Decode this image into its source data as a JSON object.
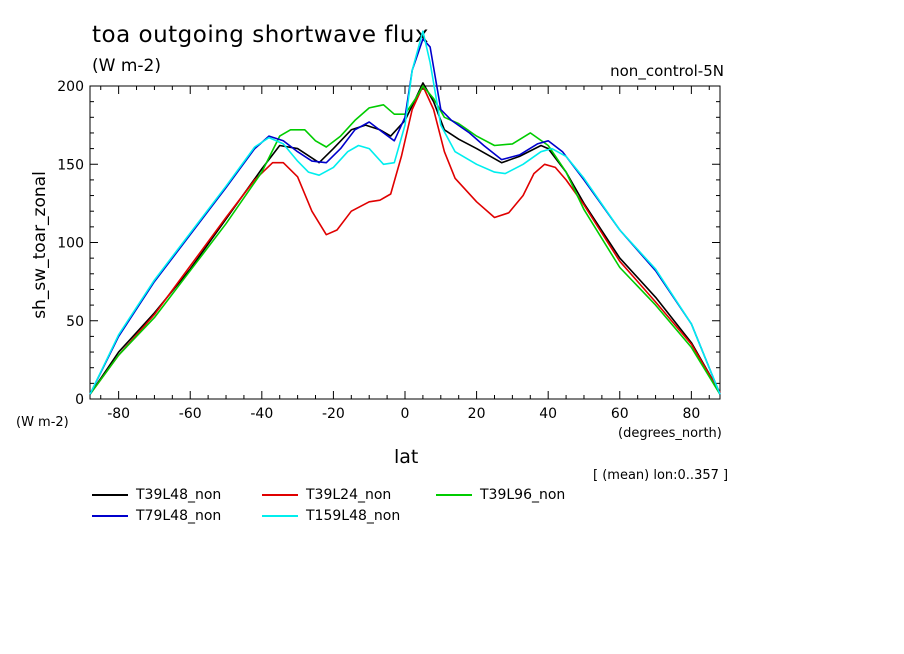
{
  "chart_data": {
    "type": "line",
    "title": "toa outgoing shortwave flux",
    "units": "(W m-2)",
    "run_label": "non_control-5N",
    "subtitle": "[ (mean) lon:0..357 ]",
    "xlabel": "lat",
    "xunits": "(degrees_north)",
    "ylabel": "sh_sw_toar_zonal",
    "yunits": "(W m-2)",
    "xlim": [
      -88,
      88
    ],
    "ylim": [
      0,
      200
    ],
    "xticks": [
      -80,
      -60,
      -40,
      -20,
      0,
      20,
      40,
      60,
      80
    ],
    "yticks": [
      0,
      50,
      100,
      150,
      200
    ],
    "grid": false,
    "legend_position": "bottom",
    "series": [
      {
        "name": "T39L48_non",
        "color": "#000000",
        "points": [
          [
            -88,
            3
          ],
          [
            -80,
            30
          ],
          [
            -70,
            55
          ],
          [
            -60,
            83
          ],
          [
            -50,
            115
          ],
          [
            -40,
            147
          ],
          [
            -35,
            162
          ],
          [
            -30,
            160
          ],
          [
            -24,
            151
          ],
          [
            -20,
            160
          ],
          [
            -15,
            172
          ],
          [
            -11,
            175
          ],
          [
            -7,
            172
          ],
          [
            -4,
            168
          ],
          [
            0,
            178
          ],
          [
            3,
            192
          ],
          [
            5,
            202
          ],
          [
            8,
            190
          ],
          [
            11,
            172
          ],
          [
            15,
            166
          ],
          [
            20,
            160
          ],
          [
            27,
            151
          ],
          [
            32,
            155
          ],
          [
            38,
            162
          ],
          [
            40,
            160
          ],
          [
            45,
            145
          ],
          [
            50,
            125
          ],
          [
            60,
            90
          ],
          [
            70,
            65
          ],
          [
            80,
            36
          ],
          [
            88,
            4
          ]
        ]
      },
      {
        "name": "T39L24_non",
        "color": "#e00000",
        "points": [
          [
            -88,
            3
          ],
          [
            -80,
            28
          ],
          [
            -70,
            54
          ],
          [
            -60,
            85
          ],
          [
            -50,
            116
          ],
          [
            -42,
            140
          ],
          [
            -37,
            151
          ],
          [
            -34,
            151
          ],
          [
            -30,
            142
          ],
          [
            -26,
            120
          ],
          [
            -22,
            105
          ],
          [
            -19,
            108
          ],
          [
            -15,
            120
          ],
          [
            -10,
            126
          ],
          [
            -7,
            127
          ],
          [
            -4,
            131
          ],
          [
            -1,
            155
          ],
          [
            2,
            185
          ],
          [
            5,
            200
          ],
          [
            8,
            185
          ],
          [
            11,
            158
          ],
          [
            14,
            141
          ],
          [
            20,
            126
          ],
          [
            25,
            116
          ],
          [
            29,
            119
          ],
          [
            33,
            130
          ],
          [
            36,
            144
          ],
          [
            39,
            150
          ],
          [
            42,
            148
          ],
          [
            45,
            140
          ],
          [
            50,
            124
          ],
          [
            60,
            88
          ],
          [
            70,
            62
          ],
          [
            80,
            35
          ],
          [
            88,
            4
          ]
        ]
      },
      {
        "name": "T39L96_non",
        "color": "#00cc00",
        "points": [
          [
            -88,
            3
          ],
          [
            -80,
            28
          ],
          [
            -70,
            52
          ],
          [
            -60,
            82
          ],
          [
            -50,
            112
          ],
          [
            -40,
            145
          ],
          [
            -35,
            168
          ],
          [
            -32,
            172
          ],
          [
            -28,
            172
          ],
          [
            -25,
            165
          ],
          [
            -22,
            161
          ],
          [
            -18,
            168
          ],
          [
            -14,
            178
          ],
          [
            -10,
            186
          ],
          [
            -6,
            188
          ],
          [
            -3,
            182
          ],
          [
            0,
            182
          ],
          [
            3,
            192
          ],
          [
            5,
            200
          ],
          [
            8,
            192
          ],
          [
            11,
            180
          ],
          [
            15,
            176
          ],
          [
            20,
            168
          ],
          [
            25,
            162
          ],
          [
            30,
            163
          ],
          [
            35,
            170
          ],
          [
            40,
            162
          ],
          [
            45,
            145
          ],
          [
            50,
            121
          ],
          [
            60,
            84
          ],
          [
            70,
            60
          ],
          [
            80,
            33
          ],
          [
            88,
            3
          ]
        ]
      },
      {
        "name": "T79L48_non",
        "color": "#0000cc",
        "points": [
          [
            -88,
            3
          ],
          [
            -80,
            40
          ],
          [
            -70,
            75
          ],
          [
            -60,
            105
          ],
          [
            -50,
            135
          ],
          [
            -42,
            160
          ],
          [
            -38,
            168
          ],
          [
            -34,
            165
          ],
          [
            -30,
            158
          ],
          [
            -26,
            152
          ],
          [
            -22,
            151
          ],
          [
            -18,
            160
          ],
          [
            -14,
            172
          ],
          [
            -10,
            177
          ],
          [
            -6,
            170
          ],
          [
            -3,
            165
          ],
          [
            0,
            180
          ],
          [
            2,
            210
          ],
          [
            5,
            230
          ],
          [
            7,
            225
          ],
          [
            10,
            185
          ],
          [
            13,
            178
          ],
          [
            18,
            170
          ],
          [
            22,
            162
          ],
          [
            27,
            153
          ],
          [
            32,
            156
          ],
          [
            37,
            163
          ],
          [
            40,
            165
          ],
          [
            44,
            158
          ],
          [
            50,
            140
          ],
          [
            60,
            108
          ],
          [
            70,
            82
          ],
          [
            80,
            48
          ],
          [
            88,
            3
          ]
        ]
      },
      {
        "name": "T159L48_non",
        "color": "#00eeee",
        "points": [
          [
            -88,
            3
          ],
          [
            -80,
            41
          ],
          [
            -70,
            76
          ],
          [
            -60,
            106
          ],
          [
            -50,
            136
          ],
          [
            -42,
            161
          ],
          [
            -38,
            167
          ],
          [
            -34,
            163
          ],
          [
            -30,
            152
          ],
          [
            -27,
            145
          ],
          [
            -24,
            143
          ],
          [
            -20,
            148
          ],
          [
            -16,
            158
          ],
          [
            -13,
            162
          ],
          [
            -10,
            160
          ],
          [
            -6,
            150
          ],
          [
            -3,
            151
          ],
          [
            0,
            175
          ],
          [
            2,
            210
          ],
          [
            5,
            235
          ],
          [
            7,
            215
          ],
          [
            10,
            175
          ],
          [
            14,
            158
          ],
          [
            20,
            150
          ],
          [
            25,
            145
          ],
          [
            28,
            144
          ],
          [
            33,
            150
          ],
          [
            38,
            158
          ],
          [
            41,
            160
          ],
          [
            45,
            155
          ],
          [
            50,
            141
          ],
          [
            60,
            108
          ],
          [
            70,
            83
          ],
          [
            80,
            48
          ],
          [
            88,
            3
          ]
        ]
      }
    ]
  }
}
